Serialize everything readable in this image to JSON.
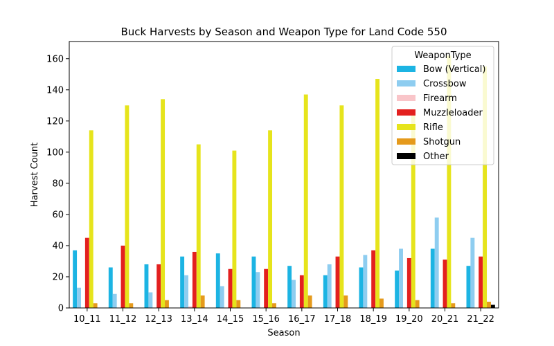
{
  "chart_data": {
    "type": "bar",
    "title": "Buck Harvests by Season and Weapon Type for Land Code 550",
    "xlabel": "Season",
    "ylabel": "Harvest Count",
    "ylim": [
      0,
      171
    ],
    "yticks": [
      0,
      20,
      40,
      60,
      80,
      100,
      120,
      140,
      160
    ],
    "grid": false,
    "legend_title": "WeaponType",
    "legend_position": "top-right",
    "categories": [
      "10_11",
      "11_12",
      "12_13",
      "13_14",
      "14_15",
      "15_16",
      "16_17",
      "17_18",
      "18_19",
      "19_20",
      "20_21",
      "21_22"
    ],
    "series": [
      {
        "name": "Bow (Vertical)",
        "color": "#1cb4e3",
        "values": [
          37,
          26,
          28,
          33,
          35,
          33,
          27,
          21,
          26,
          24,
          38,
          27
        ]
      },
      {
        "name": "Crossbow",
        "color": "#8ecdf0",
        "values": [
          13,
          9,
          10,
          21,
          14,
          23,
          18,
          28,
          34,
          38,
          58,
          45
        ]
      },
      {
        "name": "Firearm",
        "color": "#f9c5c9",
        "values": [
          0,
          0,
          0,
          1,
          0,
          0,
          0,
          0,
          0,
          0,
          0,
          0
        ]
      },
      {
        "name": "Muzzleloader",
        "color": "#e3201f",
        "values": [
          45,
          40,
          28,
          36,
          25,
          25,
          21,
          33,
          37,
          32,
          31,
          33
        ]
      },
      {
        "name": "Rifle",
        "color": "#e6e41c",
        "values": [
          114,
          130,
          134,
          105,
          101,
          114,
          137,
          130,
          147,
          125,
          162,
          155
        ]
      },
      {
        "name": "Shotgun",
        "color": "#e59a1c",
        "values": [
          3,
          3,
          5,
          8,
          5,
          3,
          8,
          8,
          6,
          5,
          3,
          4
        ]
      },
      {
        "name": "Other",
        "color": "#000000",
        "values": [
          0,
          0,
          0,
          0,
          0,
          0,
          0,
          0,
          0,
          0,
          0,
          2
        ]
      }
    ]
  }
}
